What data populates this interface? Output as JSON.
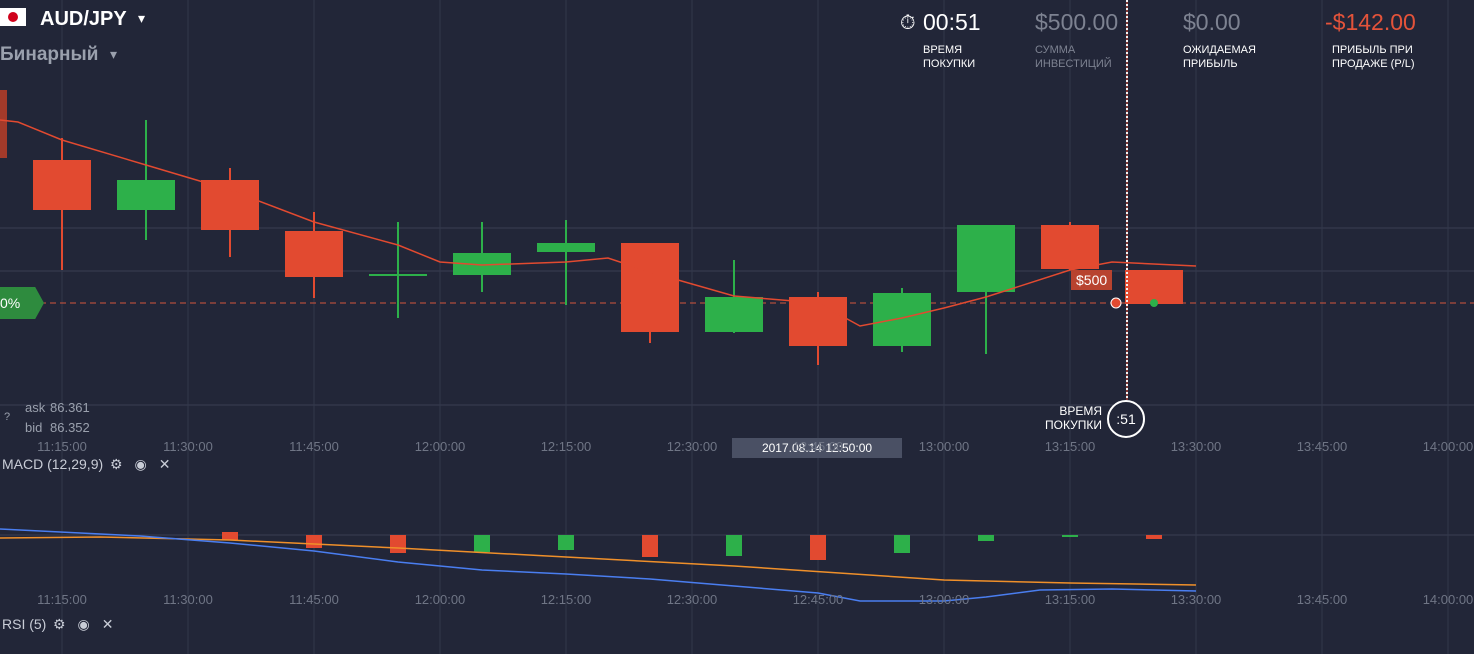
{
  "header": {
    "pair": "AUD/JPY",
    "mode": "Бинарный"
  },
  "stats": [
    {
      "value": "00:51",
      "label": "ВРЕМЯ\nПОКУПКИ"
    },
    {
      "value": "$500.00",
      "label": "СУММА\nИНВЕСТИЦИЙ"
    },
    {
      "value": "$0.00",
      "label": "ОЖИДАЕМАЯ\nПРИБЫЛЬ"
    },
    {
      "value": "-$142.00",
      "label": "ПРИБЫЛЬ ПРИ\nПРОДАЖЕ (P/L)"
    }
  ],
  "chart": {
    "strike_tag": "0%",
    "trade_amount": "$500",
    "ask_label": "ask",
    "ask": "86.361",
    "bid_label": "bid",
    "bid": "86.352",
    "buy_time_label": "ВРЕМЯ\nПОКУПКИ",
    "buy_countdown": ":51",
    "cursor_time": "2017.08.14 12:50:00",
    "time_labels": [
      "11:15:00",
      "11:30:00",
      "11:45:00",
      "12:00:00",
      "12:15:00",
      "12:30:00",
      "12:45:00",
      "13:00:00",
      "13:15:00",
      "13:30:00",
      "13:45:00",
      "14:00:00"
    ]
  },
  "indicators": [
    {
      "name": "MACD (12,29,9)"
    },
    {
      "name": "RSI (5)"
    }
  ]
}
